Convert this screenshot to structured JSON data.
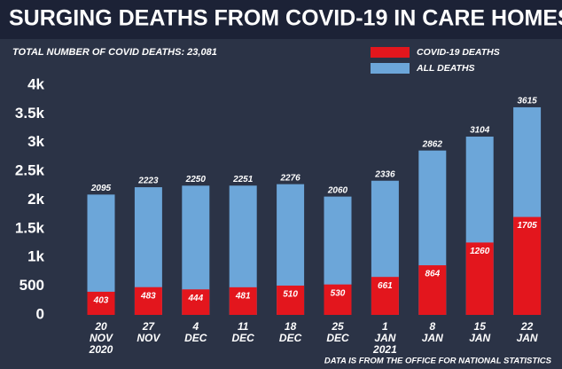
{
  "chart_data": {
    "type": "overlap-bar",
    "title": "SURGING DEATHS FROM COVID-19 IN CARE HOMES",
    "subtitle": "TOTAL NUMBER OF COVID DEATHS: 23,081",
    "source": "DATA IS FROM THE OFFICE FOR NATIONAL STATISTICS",
    "categories": [
      "20 NOV 2020",
      "27 NOV",
      "4 DEC",
      "11 DEC",
      "18 DEC",
      "25 DEC",
      "1 JAN 2021",
      "8 JAN",
      "15 JAN",
      "22 JAN"
    ],
    "series": [
      {
        "name": "COVID-19 DEATHS",
        "color": "#e3161d",
        "values": [
          403,
          483,
          444,
          481,
          510,
          530,
          661,
          864,
          1260,
          1705
        ]
      },
      {
        "name": "ALL DEATHS",
        "color": "#6ca6d9",
        "values": [
          2095,
          2223,
          2250,
          2251,
          2276,
          2060,
          2336,
          2862,
          3104,
          3615
        ]
      }
    ],
    "ylim": [
      0,
      4000
    ],
    "yticks": [
      0,
      500,
      {
        "value": 1000,
        "label": "1k"
      },
      {
        "value": 1500,
        "label": "1.5k"
      },
      {
        "value": 2000,
        "label": "2k"
      },
      {
        "value": 2500,
        "label": "2.5k"
      },
      {
        "value": 3000,
        "label": "3k"
      },
      {
        "value": 3500,
        "label": "3.5k"
      },
      {
        "value": 4000,
        "label": "4k"
      }
    ],
    "grid": false,
    "legend": "top-right"
  }
}
